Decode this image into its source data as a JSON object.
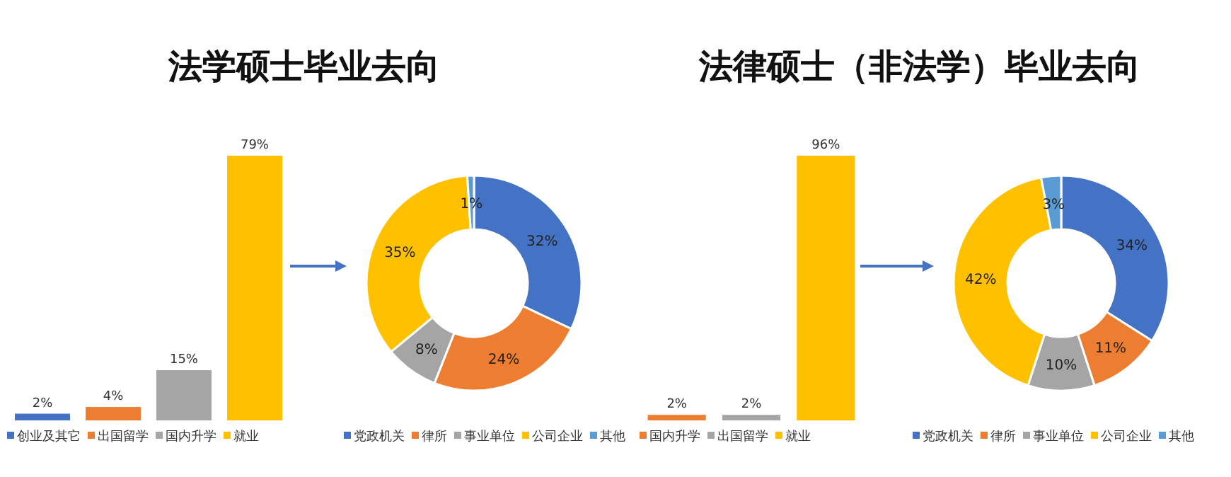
{
  "chart_data": [
    {
      "type": "bar",
      "title": "法学硕士毕业去向",
      "categories": [
        null,
        null,
        null,
        null
      ],
      "stacked": true,
      "legend": "bottom",
      "series": [
        {
          "name": "创业及其它",
          "color": "#4472c4",
          "values": [
            2,
            null,
            null,
            null
          ],
          "value_labels": [
            "2%",
            null,
            null,
            null
          ]
        },
        {
          "name": "出国留学",
          "color": "#ed7d31",
          "values": [
            null,
            4,
            null,
            null
          ],
          "value_labels": [
            null,
            "4%",
            null,
            null
          ]
        },
        {
          "name": "国内升学",
          "color": "#a5a5a5",
          "values": [
            null,
            null,
            15,
            null
          ],
          "value_labels": [
            null,
            null,
            "15%",
            null
          ]
        },
        {
          "name": "就业",
          "color": "#ffc000",
          "values": [
            null,
            null,
            null,
            79
          ],
          "value_labels": [
            null,
            null,
            null,
            "79%"
          ]
        }
      ]
    },
    {
      "type": "donut",
      "categories": [
        "党政机关",
        "律所",
        "事业单位",
        "公司企业",
        "其他"
      ],
      "values": [
        32,
        24,
        8,
        35,
        1
      ],
      "colors": [
        "#4472c4",
        "#ed7d31",
        "#a5a5a5",
        "#ffc000",
        "#5b9bd5"
      ],
      "value_labels": [
        "32%",
        "24%",
        "8%",
        "35%",
        "1%"
      ],
      "legend": "bottom"
    },
    {
      "type": "bar",
      "title": "法律硕士（非法学）毕业去向",
      "categories": [
        null,
        null,
        null
      ],
      "stacked": true,
      "legend": "bottom",
      "series": [
        {
          "name": "国内升学",
          "color": "#ed7d31",
          "values": [
            2,
            null,
            null
          ],
          "value_labels": [
            "2%",
            null,
            null
          ]
        },
        {
          "name": "出国留学",
          "color": "#a5a5a5",
          "values": [
            null,
            2,
            null
          ],
          "value_labels": [
            null,
            "2%",
            null
          ]
        },
        {
          "name": "就业",
          "color": "#ffc000",
          "values": [
            null,
            null,
            96
          ],
          "value_labels": [
            null,
            null,
            "96%"
          ]
        }
      ]
    },
    {
      "type": "donut",
      "categories": [
        "党政机关",
        "律所",
        "事业单位",
        "公司企业",
        "其他"
      ],
      "values": [
        34,
        11,
        10,
        42,
        3
      ],
      "colors": [
        "#4472c4",
        "#ed7d31",
        "#a5a5a5",
        "#ffc000",
        "#5b9bd5"
      ],
      "value_labels": [
        "34%",
        "11%",
        "10%",
        "42%",
        "3%"
      ],
      "legend": "bottom"
    }
  ]
}
